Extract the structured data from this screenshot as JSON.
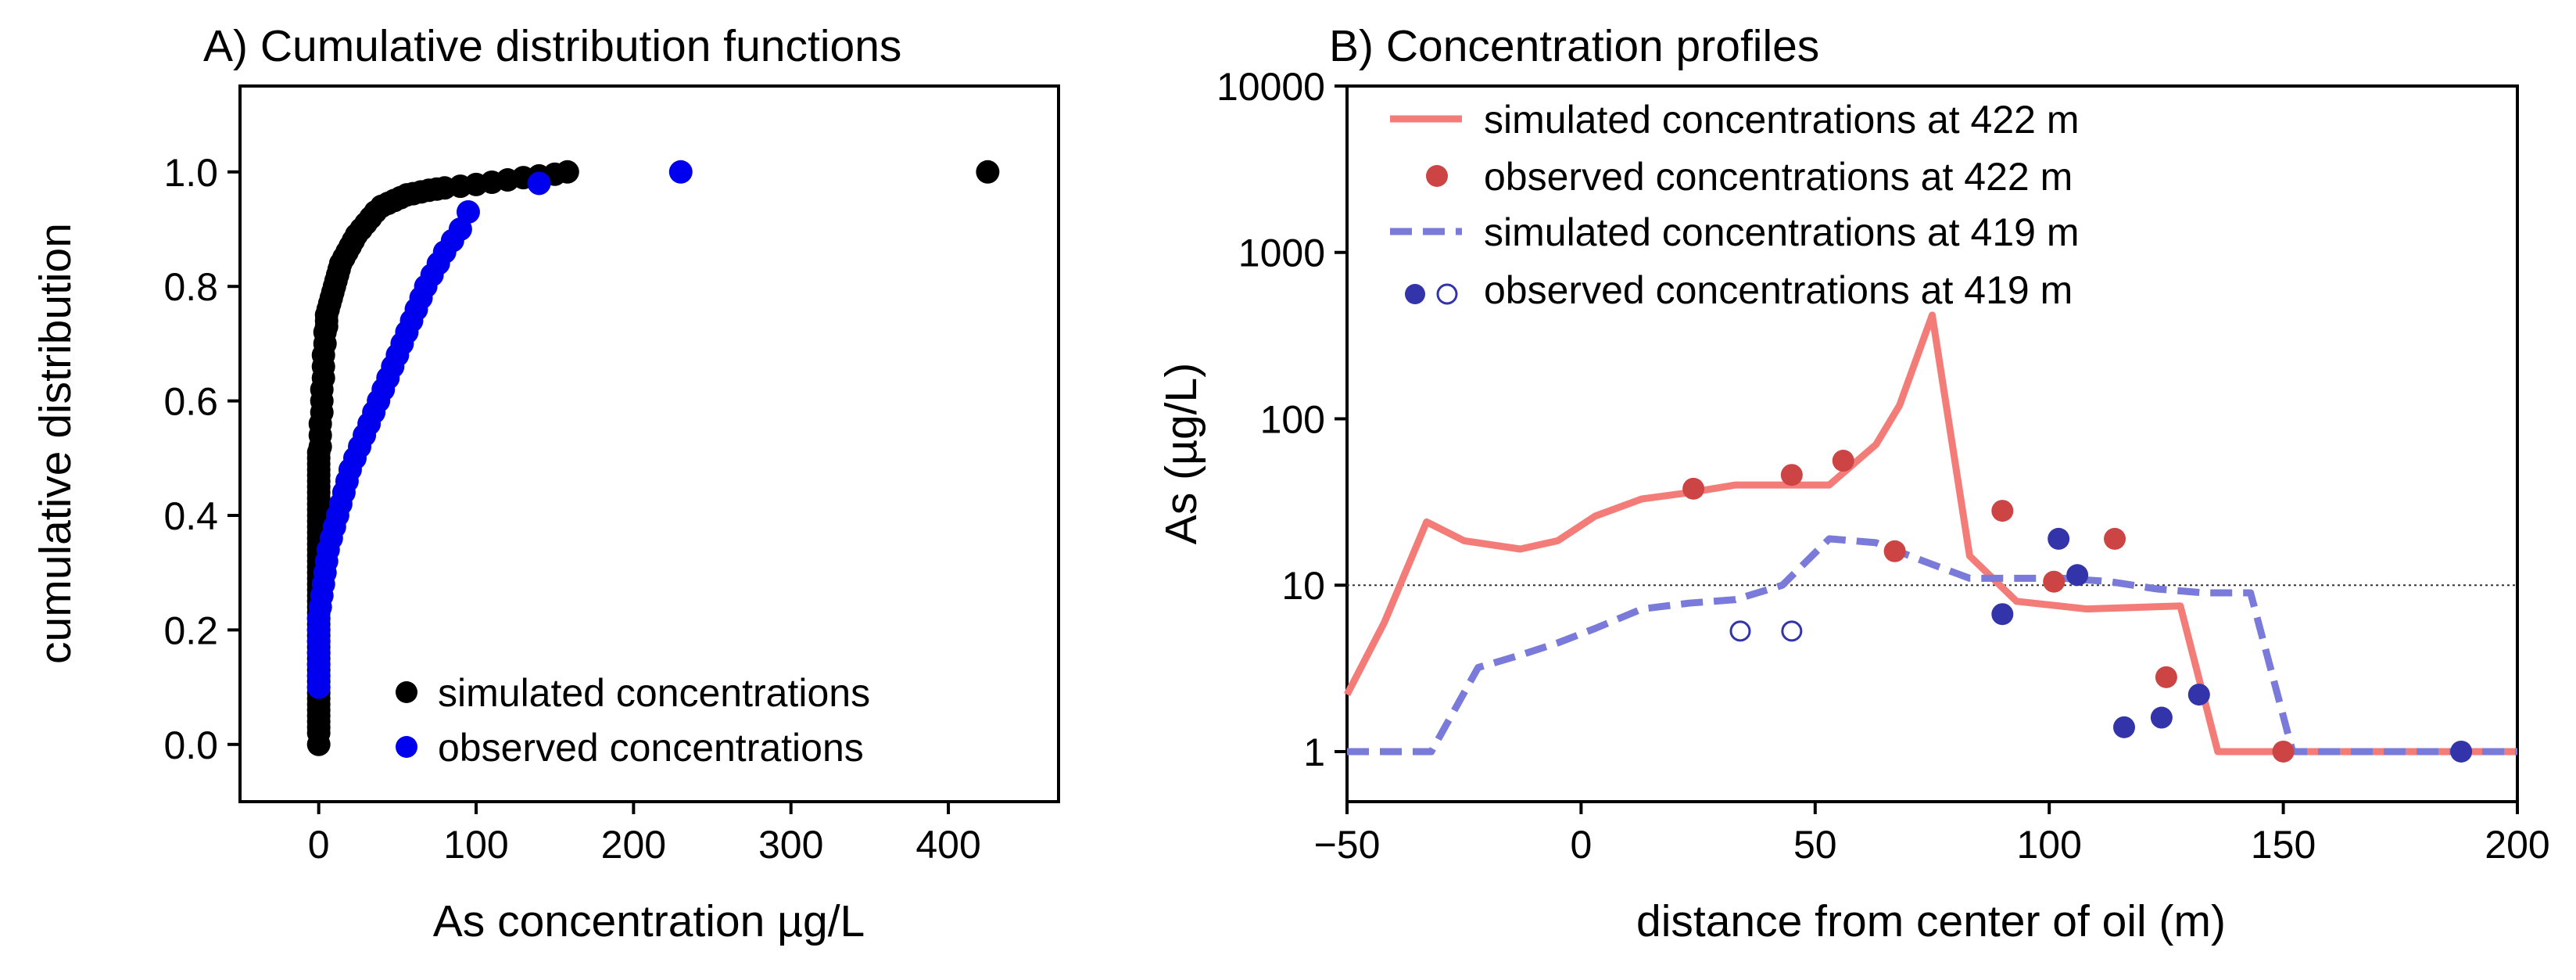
{
  "chart_data": [
    {
      "type": "scatter",
      "panel": "A",
      "title": "A) Cumulative distribution functions",
      "xlabel": "As concentration µg/L",
      "ylabel": "cumulative distribution",
      "xlim": [
        -50,
        470
      ],
      "ylim": [
        -0.1,
        1.15
      ],
      "xticks": [
        0,
        100,
        200,
        300,
        400
      ],
      "yticks": [
        0.0,
        0.2,
        0.4,
        0.6,
        0.8,
        1.0
      ],
      "xtick_labels": [
        "0",
        "100",
        "200",
        "300",
        "400"
      ],
      "ytick_labels": [
        "0.0",
        "0.2",
        "0.4",
        "0.6",
        "0.8",
        "1.0"
      ],
      "legend": {
        "position": "bottom-right",
        "entries": [
          "simulated concentrations",
          "observed concentrations"
        ]
      },
      "series": [
        {
          "name": "simulated concentrations",
          "color": "#000000",
          "x": [
            0,
            0,
            0,
            0,
            0,
            0,
            0,
            0,
            0,
            0,
            0,
            0,
            0,
            0,
            0,
            0,
            0,
            0,
            0,
            0,
            0,
            0,
            0,
            0,
            0,
            0,
            0,
            0,
            0,
            0,
            0,
            0,
            0,
            0,
            0,
            0,
            0,
            0,
            0,
            0,
            0,
            0,
            0,
            0,
            0,
            0,
            0,
            0,
            0,
            0,
            0,
            1,
            1,
            1,
            2,
            2,
            2,
            3,
            3,
            3,
            4,
            4,
            5,
            5,
            5,
            6,
            7,
            8,
            9,
            10,
            11,
            12,
            13,
            14,
            16,
            18,
            20,
            22,
            24,
            27,
            30,
            33,
            36,
            40,
            44,
            48,
            52,
            56,
            60,
            65,
            70,
            75,
            80,
            90,
            100,
            110,
            120,
            130,
            140,
            150,
            158,
            425
          ],
          "y": [
            0.0,
            0.02,
            0.03,
            0.04,
            0.05,
            0.06,
            0.07,
            0.08,
            0.09,
            0.1,
            0.11,
            0.12,
            0.13,
            0.14,
            0.15,
            0.16,
            0.17,
            0.18,
            0.19,
            0.2,
            0.21,
            0.22,
            0.23,
            0.24,
            0.25,
            0.26,
            0.27,
            0.28,
            0.29,
            0.3,
            0.31,
            0.32,
            0.33,
            0.34,
            0.35,
            0.36,
            0.37,
            0.38,
            0.39,
            0.4,
            0.41,
            0.42,
            0.43,
            0.44,
            0.45,
            0.46,
            0.47,
            0.48,
            0.49,
            0.5,
            0.51,
            0.52,
            0.54,
            0.56,
            0.58,
            0.6,
            0.62,
            0.64,
            0.66,
            0.68,
            0.7,
            0.72,
            0.73,
            0.74,
            0.75,
            0.76,
            0.77,
            0.78,
            0.79,
            0.8,
            0.81,
            0.82,
            0.83,
            0.84,
            0.85,
            0.86,
            0.87,
            0.88,
            0.89,
            0.9,
            0.91,
            0.92,
            0.93,
            0.94,
            0.945,
            0.95,
            0.955,
            0.96,
            0.962,
            0.965,
            0.968,
            0.97,
            0.972,
            0.975,
            0.978,
            0.982,
            0.986,
            0.99,
            0.993,
            0.996,
            1.0,
            1.0
          ]
        },
        {
          "name": "observed concentrations",
          "color": "#0000ee",
          "x": [
            0,
            0,
            0,
            0,
            0,
            0,
            0,
            1,
            2,
            3,
            4,
            5,
            6,
            8,
            10,
            12,
            14,
            16,
            18,
            20,
            23,
            26,
            29,
            32,
            35,
            38,
            41,
            44,
            47,
            50,
            53,
            56,
            59,
            62,
            65,
            68,
            72,
            76,
            80,
            85,
            90,
            95,
            140,
            230
          ],
          "y": [
            0.1,
            0.12,
            0.14,
            0.16,
            0.18,
            0.2,
            0.22,
            0.24,
            0.26,
            0.28,
            0.3,
            0.32,
            0.34,
            0.36,
            0.38,
            0.4,
            0.42,
            0.44,
            0.46,
            0.48,
            0.5,
            0.52,
            0.54,
            0.56,
            0.58,
            0.6,
            0.62,
            0.64,
            0.66,
            0.68,
            0.7,
            0.72,
            0.74,
            0.76,
            0.78,
            0.8,
            0.82,
            0.84,
            0.86,
            0.88,
            0.9,
            0.93,
            0.98,
            1.0
          ]
        }
      ]
    },
    {
      "type": "line",
      "panel": "B",
      "title": "B) Concentration profiles",
      "xlabel": "distance from center of oil (m)",
      "ylabel": "As (µg/L)",
      "xlim": [
        -50,
        200
      ],
      "ylim": [
        0.5,
        10000
      ],
      "yscale": "log",
      "xticks": [
        -50,
        0,
        50,
        100,
        150,
        200
      ],
      "xtick_labels": [
        "−50",
        "0",
        "50",
        "100",
        "150",
        "200"
      ],
      "yticks": [
        1,
        10,
        100,
        1000,
        10000
      ],
      "ytick_labels": [
        "1",
        "10",
        "100",
        "1000",
        "10000"
      ],
      "reference_line": {
        "y": 10,
        "style": "dotted"
      },
      "legend": {
        "position": "top",
        "entries": [
          "simulated concentrations at 422 m",
          "observed concentrations at 422 m",
          "simulated concentrations at 419 m",
          "observed concentrations at 419 m"
        ]
      },
      "series": [
        {
          "name": "simulated concentrations at 422 m",
          "kind": "line",
          "style": "solid",
          "color": "#f47c78",
          "x": [
            -50,
            -42,
            -33,
            -25,
            -13,
            -5,
            3,
            13,
            23,
            33,
            43,
            53,
            63,
            68,
            75,
            83,
            93,
            108,
            128,
            136,
            150,
            200
          ],
          "y": [
            2.2,
            6,
            24,
            18.5,
            16.5,
            18.5,
            26,
            33,
            36,
            40,
            40,
            40,
            70,
            120,
            420,
            15,
            8,
            7.2,
            7.5,
            1,
            1,
            1
          ]
        },
        {
          "name": "observed concentrations at 422 m",
          "kind": "points",
          "color": "#cc4444",
          "x": [
            24,
            45,
            56,
            67,
            90,
            101,
            114,
            125,
            150
          ],
          "y": [
            38,
            46,
            56,
            16,
            28,
            10.5,
            19,
            2.8,
            1
          ]
        },
        {
          "name": "simulated concentrations at 419 m",
          "kind": "line",
          "style": "dashed",
          "color": "#7a7adb",
          "x": [
            -50,
            -32,
            -22,
            -13,
            -5,
            3,
            13,
            23,
            33,
            43,
            53,
            63,
            73,
            83,
            93,
            103,
            113,
            123,
            133,
            143,
            152,
            200
          ],
          "y": [
            1,
            1,
            3.2,
            3.8,
            4.5,
            5.5,
            7.2,
            7.8,
            8.2,
            10,
            19,
            18,
            14,
            11,
            11,
            11,
            10.5,
            9.5,
            9,
            9,
            1,
            1
          ]
        },
        {
          "name": "observed concentrations at 419 m",
          "kind": "points",
          "color": "#3333aa",
          "x": [
            90,
            102,
            106,
            116,
            124,
            132,
            188,
            34,
            45
          ],
          "y": [
            6.7,
            19,
            11.5,
            1.4,
            1.6,
            2.2,
            1,
            5.3,
            5.3
          ],
          "filled": [
            true,
            true,
            true,
            true,
            true,
            true,
            true,
            false,
            false
          ]
        }
      ]
    }
  ]
}
